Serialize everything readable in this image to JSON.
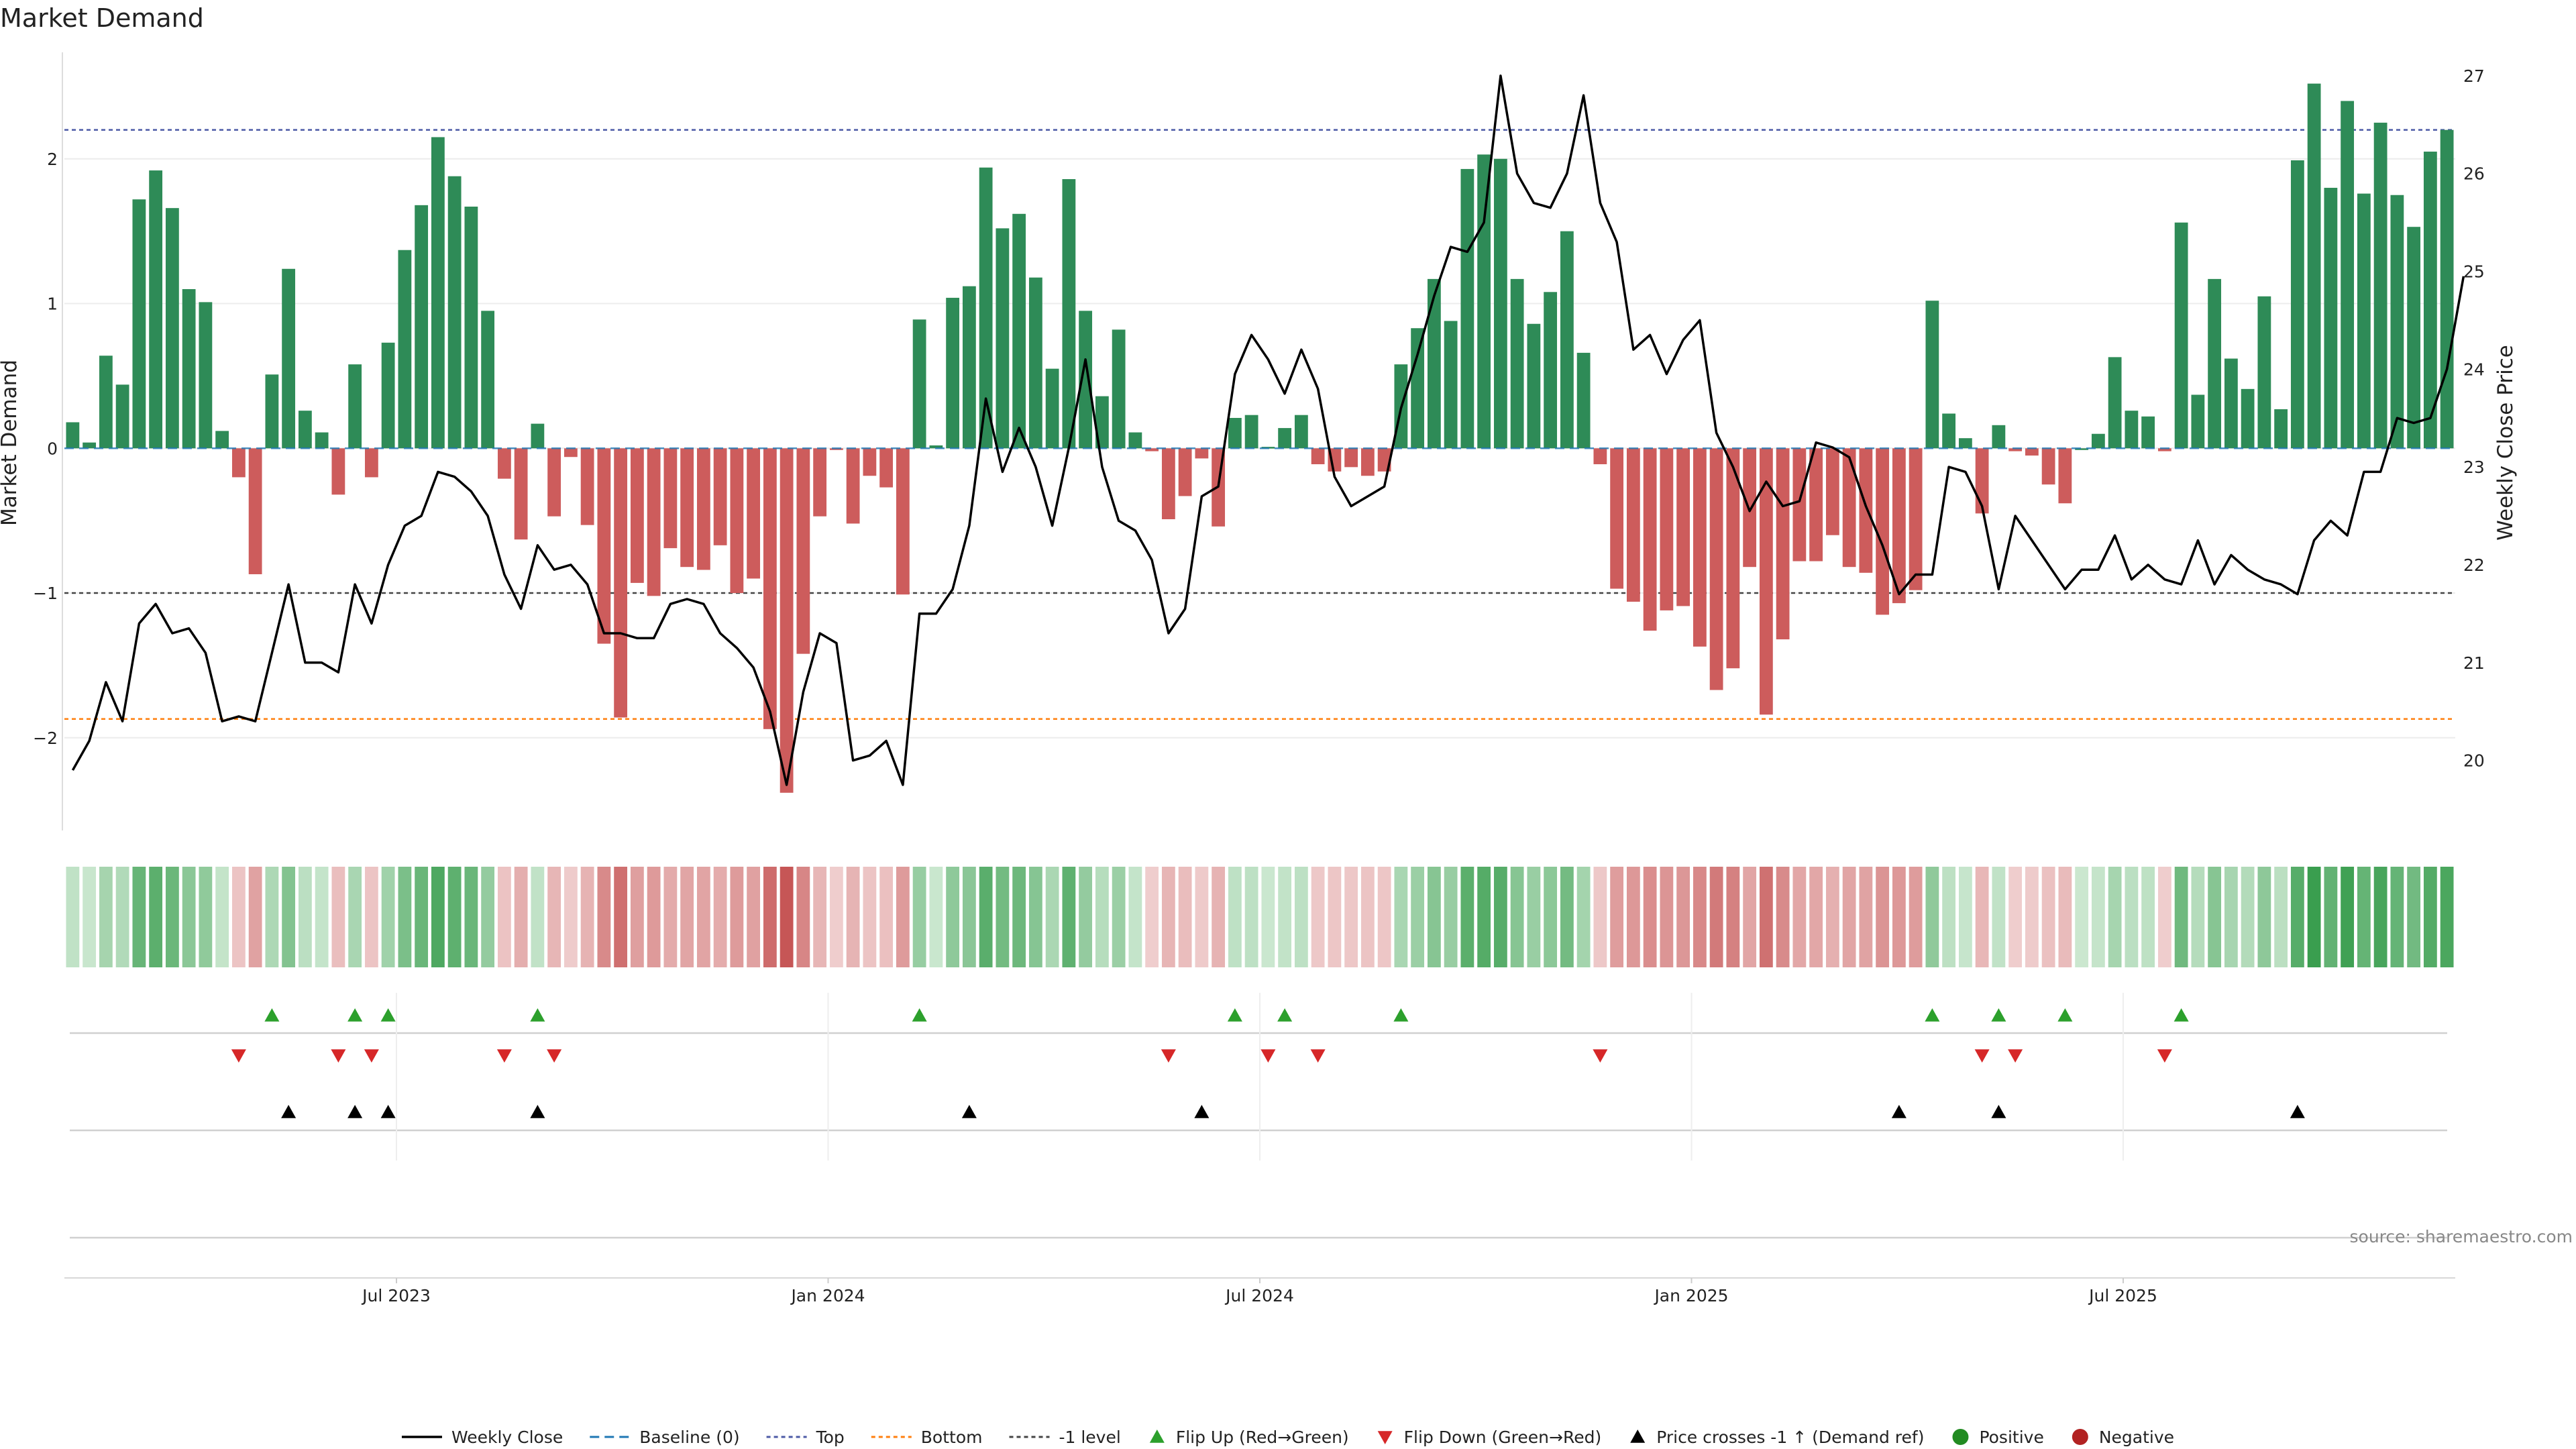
{
  "chart_data": {
    "type": "bar",
    "title": "Market Demand",
    "ylabel": "Market Demand",
    "y2label": "Weekly Close Price",
    "ylim": [
      -2.65,
      2.75
    ],
    "y2lim": [
      19.27,
      27.26
    ],
    "yticks": [
      -2,
      -1,
      0,
      1,
      2
    ],
    "yticklabels": [
      "−2",
      "−1",
      "0",
      "1",
      "2"
    ],
    "y2ticks": [
      20,
      21,
      22,
      23,
      24,
      25,
      26,
      27
    ],
    "y2ticklabels": [
      "20",
      "21",
      "22",
      "23",
      "24",
      "25",
      "26",
      "27"
    ],
    "xticks": [
      {
        "label": "Jul 2023",
        "index": 20
      },
      {
        "label": "Jan 2024",
        "index": 46
      },
      {
        "label": "Jul 2024",
        "index": 72
      },
      {
        "label": "Jan 2025",
        "index": 98
      },
      {
        "label": "Jul 2025",
        "index": 124
      }
    ],
    "levels": {
      "top": 2.2,
      "bottom": -1.87,
      "minus_one": -1,
      "baseline": 0
    },
    "demand": [
      0.18,
      0.04,
      0.64,
      0.44,
      1.72,
      1.92,
      1.66,
      1.1,
      1.01,
      0.12,
      -0.2,
      -0.87,
      0.51,
      1.24,
      0.26,
      0.11,
      -0.32,
      0.58,
      -0.2,
      0.73,
      1.37,
      1.68,
      2.15,
      1.88,
      1.67,
      0.95,
      -0.21,
      -0.63,
      0.17,
      -0.47,
      -0.06,
      -0.53,
      -1.35,
      -1.86,
      -0.93,
      -1.02,
      -0.69,
      -0.82,
      -0.84,
      -0.67,
      -1.0,
      -0.9,
      -1.94,
      -2.38,
      -1.42,
      -0.47,
      -0.01,
      -0.52,
      -0.19,
      -0.27,
      -1.01,
      0.89,
      0.02,
      1.04,
      1.12,
      1.94,
      1.52,
      1.62,
      1.18,
      0.55,
      1.86,
      0.95,
      0.36,
      0.82,
      0.11,
      -0.02,
      -0.49,
      -0.33,
      -0.07,
      -0.54,
      0.21,
      0.23,
      0.01,
      0.14,
      0.23,
      -0.11,
      -0.16,
      -0.13,
      -0.19,
      -0.16,
      0.58,
      0.83,
      1.17,
      0.88,
      1.93,
      2.03,
      2.0,
      1.17,
      0.86,
      1.08,
      1.5,
      0.66,
      -0.11,
      -0.97,
      -1.06,
      -1.26,
      -1.12,
      -1.09,
      -1.37,
      -1.67,
      -1.52,
      -0.82,
      -1.84,
      -1.32,
      -0.78,
      -0.78,
      -0.6,
      -0.82,
      -0.86,
      -1.15,
      -1.07,
      -0.98,
      1.02,
      0.24,
      0.07,
      -0.45,
      0.16,
      -0.02,
      -0.05,
      -0.25,
      -0.38,
      0.0,
      0.1,
      0.63,
      0.26,
      0.22,
      -0.02,
      1.56,
      0.37,
      1.17,
      0.62,
      0.41,
      1.05,
      0.27,
      1.99,
      2.52,
      1.8,
      2.4,
      1.76,
      2.25,
      1.75,
      1.53,
      2.05,
      2.2
    ],
    "close": [
      19.9,
      20.2,
      20.8,
      20.4,
      21.4,
      21.6,
      21.3,
      21.35,
      21.1,
      20.4,
      20.45,
      20.4,
      21.1,
      21.8,
      21.0,
      21.0,
      20.9,
      21.8,
      21.4,
      22.0,
      22.4,
      22.5,
      22.95,
      22.9,
      22.75,
      22.5,
      21.9,
      21.55,
      22.2,
      21.95,
      22.0,
      21.8,
      21.3,
      21.3,
      21.25,
      21.25,
      21.6,
      21.65,
      21.6,
      21.3,
      21.15,
      20.95,
      20.5,
      19.75,
      20.7,
      21.3,
      21.2,
      20.0,
      20.05,
      20.2,
      19.75,
      21.5,
      21.5,
      21.75,
      22.4,
      23.7,
      22.95,
      23.4,
      23.0,
      22.4,
      23.2,
      24.1,
      23.0,
      22.45,
      22.35,
      22.05,
      21.3,
      21.55,
      22.7,
      22.8,
      23.95,
      24.35,
      24.1,
      23.75,
      24.2,
      23.8,
      22.9,
      22.6,
      22.7,
      22.8,
      23.6,
      24.15,
      24.75,
      25.25,
      25.2,
      25.5,
      27.0,
      26.0,
      25.7,
      25.65,
      26.0,
      26.8,
      25.7,
      25.3,
      24.2,
      24.35,
      23.95,
      24.3,
      24.5,
      23.35,
      23.0,
      22.55,
      22.85,
      22.6,
      22.65,
      23.25,
      23.2,
      23.1,
      22.6,
      22.2,
      21.7,
      21.9,
      21.9,
      23.0,
      22.95,
      22.6,
      21.75,
      22.5,
      22.25,
      22.0,
      21.75,
      21.95,
      21.95,
      22.3,
      21.85,
      22.0,
      21.85,
      21.8,
      22.25,
      21.8,
      22.1,
      21.95,
      21.85,
      21.8,
      21.7,
      22.25,
      22.45,
      22.3,
      22.95,
      22.95,
      23.5,
      23.45,
      23.5,
      24.0,
      24.95
    ],
    "flip_up_indices": [
      12,
      17,
      19,
      28,
      51,
      70,
      73,
      80,
      112,
      116,
      120,
      127
    ],
    "flip_down_indices": [
      10,
      16,
      18,
      26,
      29,
      66,
      72,
      75,
      92,
      115,
      117,
      126
    ],
    "price_cross_indices": [
      13,
      17,
      19,
      28,
      54,
      68,
      110,
      116,
      134
    ],
    "legend": [
      {
        "label": "Weekly Close",
        "kind": "line-solid",
        "color": "#000000"
      },
      {
        "label": "Baseline (0)",
        "kind": "line-dashed",
        "color": "#1f77b4"
      },
      {
        "label": "Top",
        "kind": "line-dotted",
        "color": "#4c5aa6"
      },
      {
        "label": "Bottom",
        "kind": "line-dotted",
        "color": "#ff7f0e"
      },
      {
        "label": "-1 level",
        "kind": "line-dotted",
        "color": "#444444"
      },
      {
        "label": "Flip Up (Red→Green)",
        "kind": "tri-up",
        "color": "#2ca02c"
      },
      {
        "label": "Flip Down (Green→Red)",
        "kind": "tri-down",
        "color": "#d62728"
      },
      {
        "label": "Price crosses -1 ↑ (Demand ref)",
        "kind": "tri-up",
        "color": "#000000"
      },
      {
        "label": "Positive",
        "kind": "dot",
        "color": "#228b22"
      },
      {
        "label": "Negative",
        "kind": "dot",
        "color": "#b22222"
      }
    ],
    "source": "source: sharemaestro.com",
    "colors": {
      "positive_bar": "#2e8b57",
      "negative_bar": "#cd5c5c",
      "price": "#000000",
      "flip_up": "#2ca02c",
      "flip_down": "#d62728",
      "cross": "#000000"
    }
  }
}
